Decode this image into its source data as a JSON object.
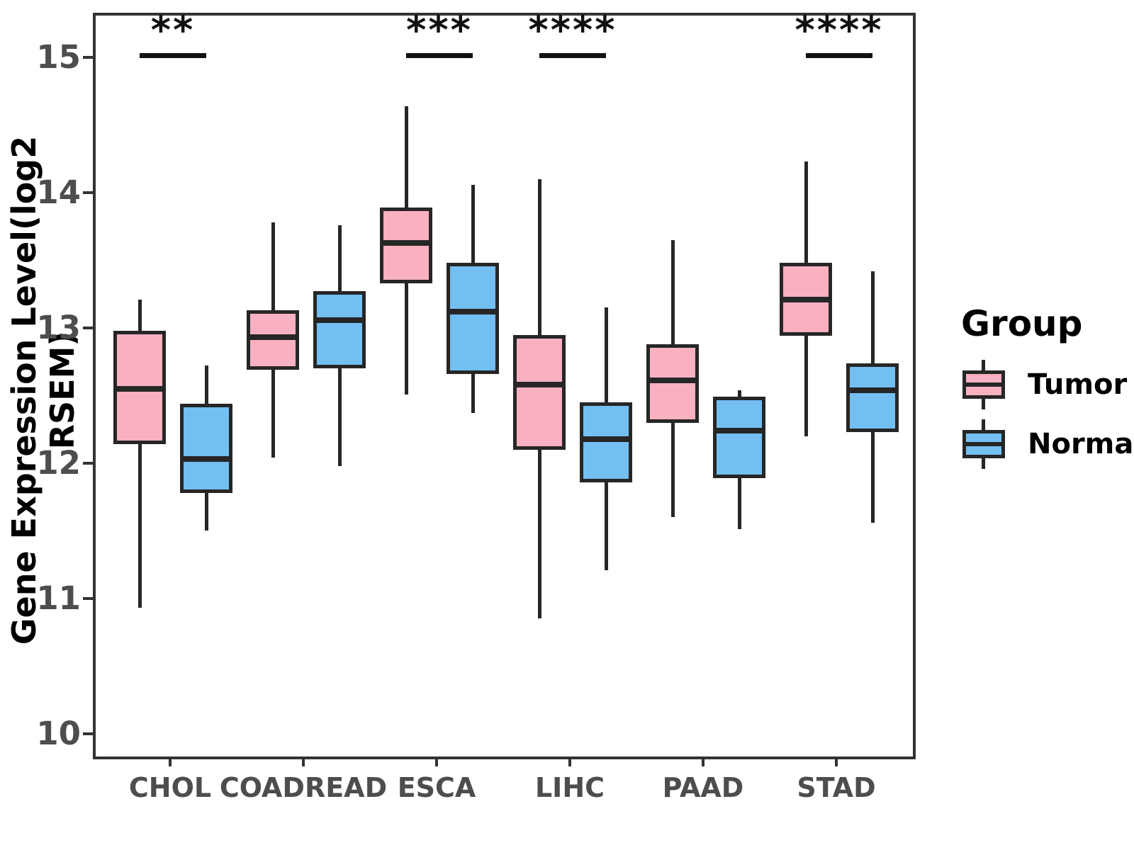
{
  "figure": {
    "ylabel": "Gene Expression Level(log2 RSEM)"
  },
  "legend": {
    "title": "Group",
    "entries": [
      {
        "label": "Tumor",
        "color": "#F9B1C1"
      },
      {
        "label": "Normal",
        "color": "#73BFF2"
      }
    ]
  },
  "chart_data": {
    "type": "boxplot",
    "title": "",
    "xlabel": "",
    "ylabel": "Gene Expression Level(log2 RSEM)",
    "categories": [
      "CHOL",
      "COADREAD",
      "ESCA",
      "LIHC",
      "PAAD",
      "STAD"
    ],
    "yticks": [
      "10",
      "11",
      "12",
      "13",
      "14",
      "15"
    ],
    "ylim": [
      9.83,
      15.33
    ],
    "grid": false,
    "legend_position": "right",
    "colors": {
      "tumor": "#F9B1C1",
      "normal": "#73BFF2",
      "stroke": "#262626",
      "axis_text": "#4d4d4d"
    },
    "series": [
      {
        "name": "Tumor",
        "color": "#F9B1C1",
        "boxes": [
          {
            "category": "CHOL",
            "low": 10.95,
            "q1": 12.16,
            "median": 12.57,
            "q3": 13.0,
            "high": 13.23
          },
          {
            "category": "COADREAD",
            "low": 12.06,
            "q1": 12.71,
            "median": 12.95,
            "q3": 13.15,
            "high": 13.8
          },
          {
            "category": "ESCA",
            "low": 12.53,
            "q1": 13.35,
            "median": 13.65,
            "q3": 13.91,
            "high": 14.66
          },
          {
            "category": "LIHC",
            "low": 10.87,
            "q1": 12.12,
            "median": 12.6,
            "q3": 12.97,
            "high": 14.12
          },
          {
            "category": "PAAD",
            "low": 11.62,
            "q1": 12.32,
            "median": 12.63,
            "q3": 12.9,
            "high": 13.67
          },
          {
            "category": "STAD",
            "low": 12.22,
            "q1": 12.96,
            "median": 13.23,
            "q3": 13.5,
            "high": 14.25
          }
        ]
      },
      {
        "name": "Normal",
        "color": "#73BFF2",
        "boxes": [
          {
            "category": "CHOL",
            "low": 11.52,
            "q1": 11.8,
            "median": 12.05,
            "q3": 12.46,
            "high": 12.74
          },
          {
            "category": "COADREAD",
            "low": 12.0,
            "q1": 12.72,
            "median": 13.08,
            "q3": 13.29,
            "high": 13.78
          },
          {
            "category": "ESCA",
            "low": 12.39,
            "q1": 12.68,
            "median": 13.14,
            "q3": 13.5,
            "high": 14.08
          },
          {
            "category": "LIHC",
            "low": 11.23,
            "q1": 11.88,
            "median": 12.2,
            "q3": 12.47,
            "high": 13.17
          },
          {
            "category": "PAAD",
            "low": 11.53,
            "q1": 11.91,
            "median": 12.26,
            "q3": 12.51,
            "high": 12.56
          },
          {
            "category": "STAD",
            "low": 11.58,
            "q1": 12.25,
            "median": 12.56,
            "q3": 12.76,
            "high": 13.44
          }
        ]
      }
    ],
    "significance": [
      {
        "category": "CHOL",
        "label": "**",
        "y": 15.05
      },
      {
        "category": "ESCA",
        "label": "***",
        "y": 15.05
      },
      {
        "category": "LIHC",
        "label": "****",
        "y": 15.05
      },
      {
        "category": "STAD",
        "label": "****",
        "y": 15.05
      }
    ]
  }
}
